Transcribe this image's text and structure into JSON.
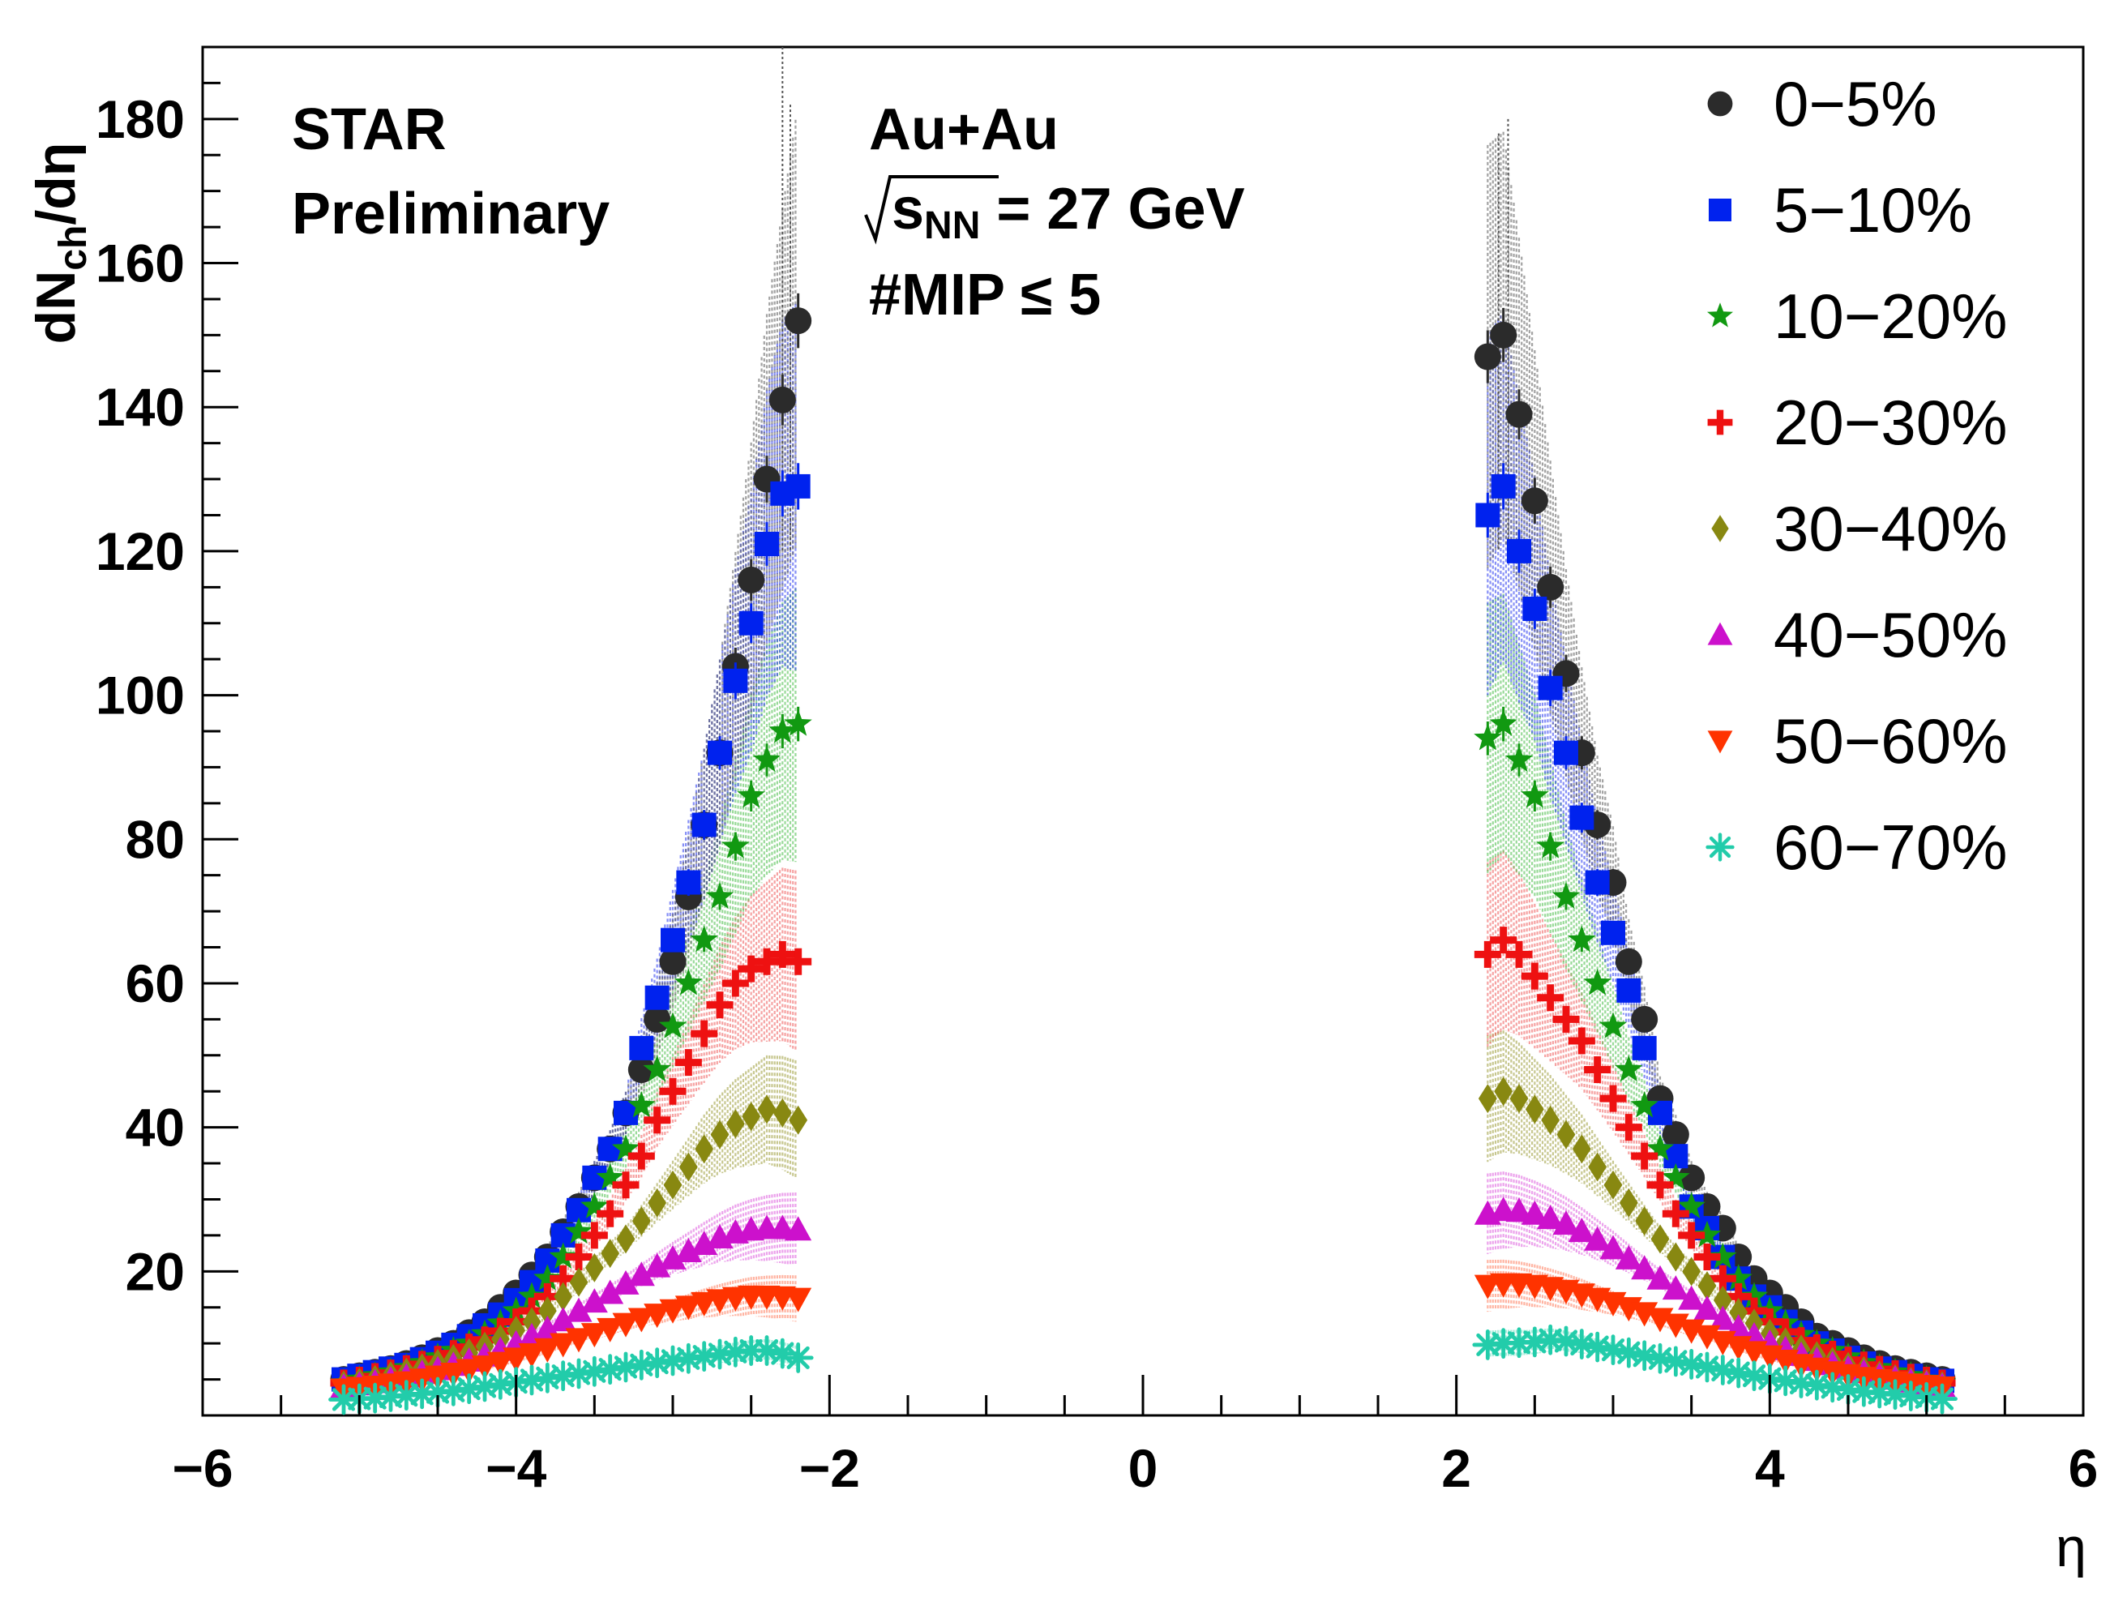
{
  "chart_data": {
    "type": "scatter",
    "title": "",
    "xlabel": "η",
    "ylabel": "dNch/dη",
    "ylabel_parts": {
      "main": "dN",
      "sub": "ch",
      "tail": "/dη"
    },
    "xlim": [
      -6,
      6
    ],
    "ylim": [
      0,
      190
    ],
    "x_ticks": [
      "−6",
      "−4",
      "−2",
      "0",
      "2",
      "4",
      "6"
    ],
    "y_ticks": [
      "20",
      "40",
      "60",
      "80",
      "100",
      "120",
      "140",
      "160",
      "180"
    ],
    "annotations": {
      "experiment": "STAR",
      "status": "Preliminary",
      "system": "Au+Au",
      "energy_prefix": "s",
      "energy_sub": "NN",
      "energy_value": " = 27 GeV",
      "cut": "#MIP ≤ 5"
    },
    "eta_left": [
      -5.1,
      -5.0,
      -4.9,
      -4.8,
      -4.7,
      -4.6,
      -4.5,
      -4.4,
      -4.3,
      -4.2,
      -4.1,
      -4.0,
      -3.9,
      -3.8,
      -3.7,
      -3.6,
      -3.5,
      -3.4,
      -3.3,
      -3.2,
      -3.1,
      -3.0,
      -2.9,
      -2.8,
      -2.7,
      -2.6,
      -2.5,
      -2.4,
      -2.3,
      -2.2
    ],
    "eta_right": [
      2.2,
      2.3,
      2.4,
      2.5,
      2.6,
      2.7,
      2.8,
      2.9,
      3.0,
      3.1,
      3.2,
      3.3,
      3.4,
      3.5,
      3.6,
      3.7,
      3.8,
      3.9,
      4.0,
      4.1,
      4.2,
      4.3,
      4.4,
      4.5,
      4.6,
      4.7,
      4.8,
      4.9,
      5.0,
      5.1
    ],
    "series": [
      {
        "name": "0−5%",
        "marker": "circle",
        "color": "#2b2b2b",
        "band": "#555555",
        "left": [
          5,
          5.5,
          6,
          6.5,
          7.2,
          8,
          9,
          10,
          11.5,
          13,
          15,
          17,
          19.5,
          22,
          25.5,
          29,
          33,
          37,
          42,
          48,
          55,
          63,
          72,
          82,
          92,
          104,
          116,
          130,
          141,
          152
        ],
        "right": [
          147,
          150,
          139,
          127,
          115,
          103,
          92,
          82,
          74,
          63,
          55,
          44,
          39,
          33,
          29,
          26,
          22,
          19,
          17,
          15,
          13,
          11,
          10,
          9,
          8,
          7.2,
          6.5,
          6,
          5.5,
          5
        ]
      },
      {
        "name": "5−10%",
        "marker": "square",
        "color": "#0022ee",
        "band": "#2233ee",
        "left": [
          5,
          5.5,
          6,
          6.5,
          7,
          7.8,
          8.7,
          9.8,
          11,
          12.5,
          14,
          16,
          18.5,
          21.5,
          25,
          28.5,
          33,
          37,
          42,
          51,
          58,
          66,
          74,
          82,
          92,
          102,
          110,
          121,
          128,
          129
        ],
        "right": [
          125,
          129,
          120,
          112,
          101,
          92,
          83,
          74,
          67,
          59,
          51,
          42,
          36,
          29,
          26,
          22,
          19,
          16.5,
          15,
          13,
          11.5,
          10,
          9,
          8,
          7.2,
          6.5,
          6,
          5.5,
          5,
          4.8
        ]
      },
      {
        "name": "10−20%",
        "marker": "star",
        "color": "#119911",
        "band": "#44bb44",
        "left": [
          4.5,
          5,
          5.5,
          6,
          6.6,
          7.3,
          8.1,
          9,
          10,
          11.3,
          12.8,
          14.5,
          16.5,
          19,
          22,
          25.5,
          29,
          33,
          37,
          43,
          48,
          54,
          60,
          66,
          72,
          79,
          86,
          91,
          95,
          96
        ],
        "right": [
          94,
          96,
          91,
          86,
          79,
          72,
          66,
          60,
          54,
          48,
          43,
          37,
          33,
          29,
          25,
          22,
          19,
          16.5,
          14.5,
          12.8,
          11.2,
          10,
          9,
          8.1,
          7.3,
          6.6,
          6,
          5.5,
          5,
          4.5
        ]
      },
      {
        "name": "20−30%",
        "marker": "plus",
        "color": "#ee1111",
        "band": "#ee5555",
        "left": [
          4.5,
          4.9,
          5.4,
          5.9,
          6.5,
          7.1,
          7.8,
          8.6,
          9.5,
          10.5,
          11.7,
          13,
          14.5,
          16.5,
          19,
          22,
          25,
          28,
          32,
          36,
          41,
          45,
          49,
          53,
          57,
          60,
          62,
          63,
          64,
          63
        ],
        "right": [
          64,
          66,
          64,
          61,
          58,
          55,
          52,
          48,
          44,
          40,
          36,
          32,
          28,
          25,
          22,
          19,
          16.5,
          14.5,
          13,
          11.6,
          10.4,
          9.4,
          8.5,
          7.7,
          7,
          6.4,
          5.8,
          5.3,
          4.9,
          4.5
        ]
      },
      {
        "name": "30−40%",
        "marker": "diamond",
        "color": "#888811",
        "band": "#999933",
        "left": [
          4.2,
          4.6,
          5,
          5.5,
          6,
          6.6,
          7.2,
          7.9,
          8.7,
          9.6,
          10.6,
          11.8,
          13,
          14.5,
          16.5,
          18.5,
          20.5,
          22.5,
          24.5,
          27,
          29.5,
          32,
          34.5,
          37,
          39,
          40.5,
          41.5,
          42.5,
          42,
          41
        ],
        "right": [
          44,
          45,
          44,
          42.5,
          41,
          39,
          37,
          34.5,
          32,
          29.5,
          27,
          24.5,
          22,
          20,
          18,
          16,
          14.3,
          12.8,
          11.4,
          10.2,
          9.2,
          8.3,
          7.5,
          6.8,
          6.2,
          5.6,
          5.1,
          4.7,
          4.4,
          4.1
        ]
      },
      {
        "name": "40−50%",
        "marker": "triangle-up",
        "color": "#cc11cc",
        "band": "#dd55dd",
        "left": [
          4,
          4.3,
          4.6,
          5,
          5.4,
          5.9,
          6.4,
          7,
          7.6,
          8.3,
          9.1,
          10,
          11,
          12,
          13.2,
          14.5,
          15.8,
          17,
          18.3,
          19.5,
          20.7,
          21.8,
          22.8,
          23.8,
          24.7,
          25.4,
          25.8,
          26,
          26,
          25.8
        ],
        "right": [
          28,
          28.5,
          28.4,
          28,
          27.4,
          26.6,
          25.6,
          24.4,
          23.2,
          21.8,
          20.4,
          19,
          17.6,
          16.2,
          14.8,
          13.4,
          12.2,
          11.1,
          10.1,
          9.2,
          8.4,
          7.7,
          7.1,
          6.5,
          6,
          5.5,
          5.1,
          4.7,
          4.4,
          4.1
        ]
      },
      {
        "name": "50−60%",
        "marker": "triangle-down",
        "color": "#ff3300",
        "band": "#ff7755",
        "left": [
          3.6,
          3.8,
          4,
          4.3,
          4.6,
          5,
          5.4,
          5.8,
          6.3,
          6.8,
          7.3,
          7.9,
          8.5,
          9.2,
          9.9,
          10.6,
          11.3,
          12,
          12.7,
          13.4,
          14,
          14.6,
          15.1,
          15.6,
          16,
          16.3,
          16.5,
          16.5,
          16.4,
          16.2
        ],
        "right": [
          18,
          18.2,
          18.2,
          18,
          17.7,
          17.3,
          16.8,
          16.2,
          15.6,
          14.9,
          14.2,
          13.4,
          12.6,
          11.8,
          11,
          10.2,
          9.5,
          8.8,
          8.2,
          7.6,
          7,
          6.5,
          6,
          5.6,
          5.2,
          4.9,
          4.6,
          4.3,
          4.1,
          3.9
        ]
      },
      {
        "name": "60−70%",
        "marker": "asterisk",
        "color": "#22ccaa",
        "band": "#55ddbb",
        "left": [
          2.2,
          2.3,
          2.4,
          2.6,
          2.8,
          3,
          3.2,
          3.4,
          3.7,
          4,
          4.3,
          4.6,
          4.9,
          5.2,
          5.5,
          5.8,
          6.1,
          6.4,
          6.7,
          7,
          7.3,
          7.6,
          7.9,
          8.2,
          8.5,
          8.8,
          9,
          9,
          8.6,
          8
        ],
        "right": [
          9.8,
          10,
          10.1,
          10.2,
          10.5,
          10.3,
          9.9,
          9.5,
          9.1,
          8.7,
          8.3,
          7.9,
          7.5,
          7.1,
          6.7,
          6.3,
          5.9,
          5.5,
          5.1,
          4.8,
          4.5,
          4.2,
          3.9,
          3.6,
          3.3,
          3.1,
          2.9,
          2.7,
          2.5,
          2.3
        ]
      }
    ]
  }
}
